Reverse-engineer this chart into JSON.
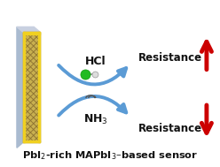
{
  "bg_color": "#ffffff",
  "resistance_label": "Resistance",
  "nh3_label": "NH$_3$",
  "hcl_label": "HCl",
  "arrow_up_color": "#cc0000",
  "arrow_down_color": "#cc0000",
  "curve_color": "#5b9bd5",
  "film_front_color": "#c8b050",
  "film_grid_color": "#8a7030",
  "film_side_color": "#6a5820",
  "film_top_color": "#aaaacc",
  "film_back_color": "#9999bb",
  "hcl_cl_color": "#22bb22",
  "hcl_h_color": "#dddddd",
  "text_color": "#111111",
  "title_text": "PbI$_2$-rich MAPbI$_3$–based sensor"
}
